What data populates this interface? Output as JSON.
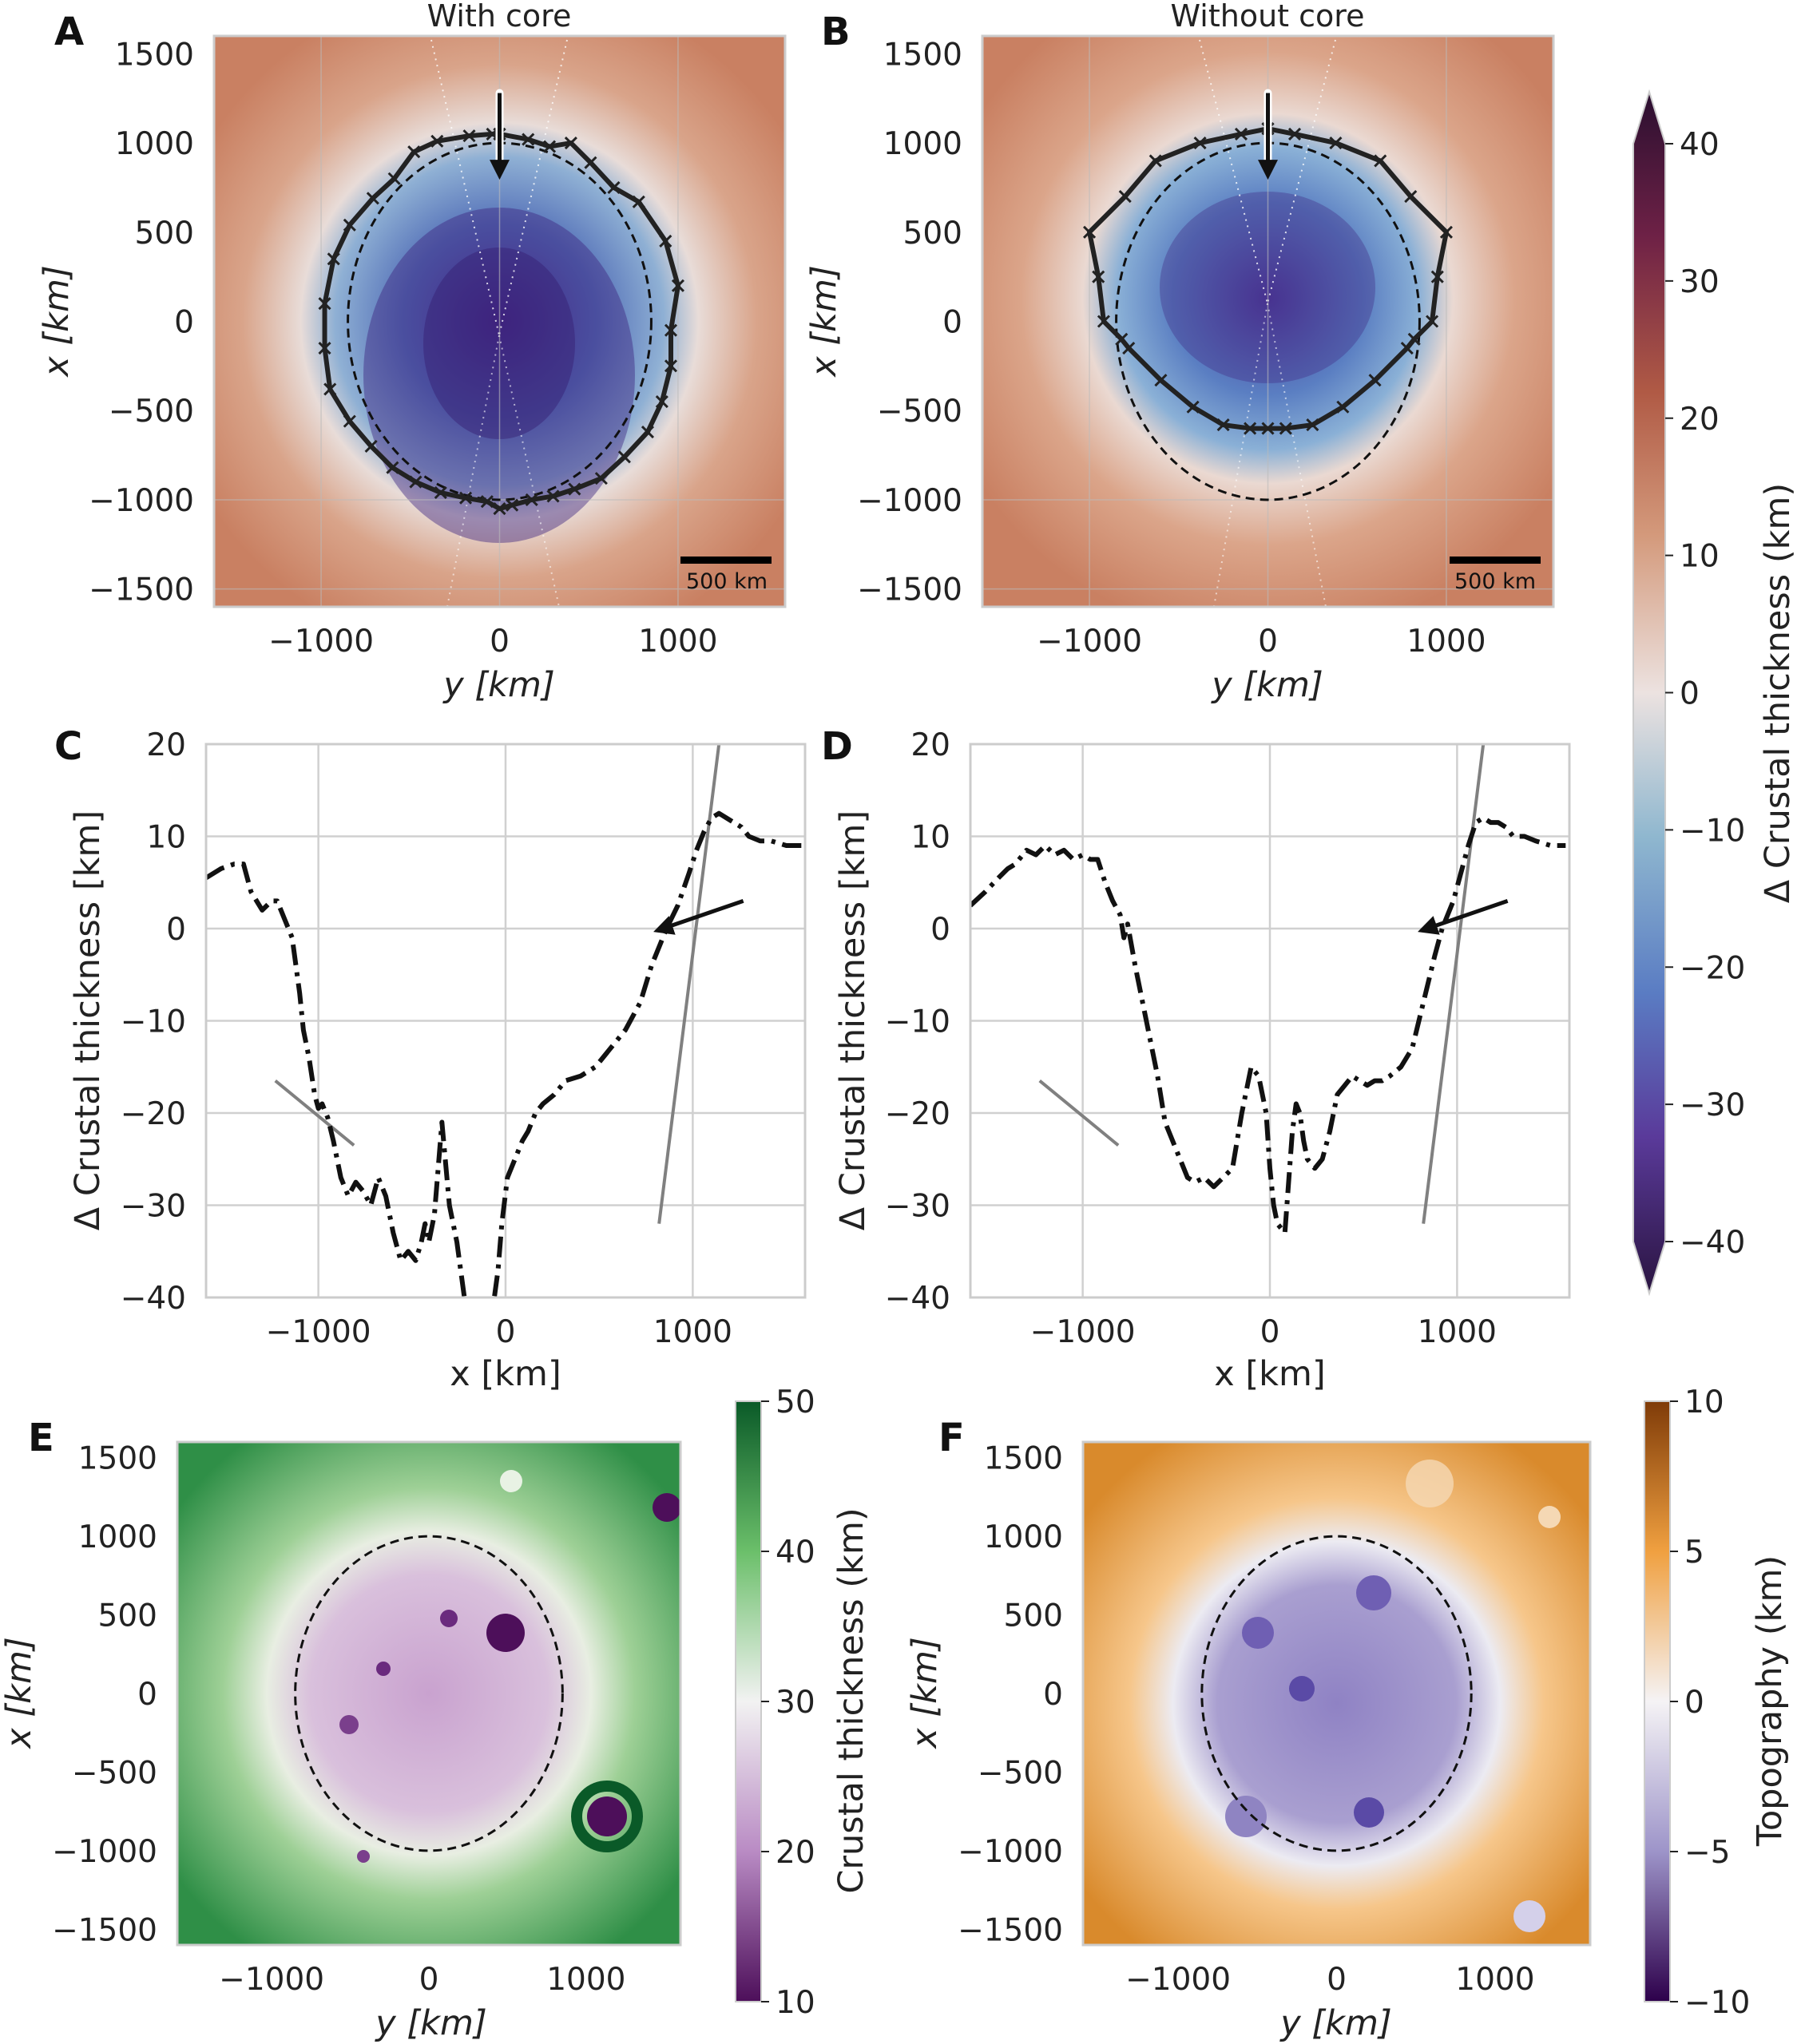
{
  "figure": {
    "panels": {
      "A": {
        "letter": "A",
        "title": "With core",
        "xlabel": "y [km]",
        "ylabel": "x [km]",
        "scale_label": "500 km"
      },
      "B": {
        "letter": "B",
        "title": "Without core",
        "xlabel": "y [km]",
        "ylabel": "x [km]",
        "scale_label": "500 km"
      },
      "C": {
        "letter": "C",
        "xlabel": "x [km]",
        "ylabel": "Δ Crustal thickness [km]"
      },
      "D": {
        "letter": "D",
        "xlabel": "x [km]",
        "ylabel": "Δ Crustal thickness [km]"
      },
      "E": {
        "letter": "E",
        "xlabel": "y [km]",
        "ylabel": "x [km]"
      },
      "F": {
        "letter": "F",
        "xlabel": "y [km]",
        "ylabel": "x [km]"
      }
    },
    "colorbars": {
      "delta": {
        "label": "Δ Crustal thickness (km)",
        "ticks": [
          "40",
          "30",
          "20",
          "10",
          "0",
          "−10",
          "−20",
          "−30",
          "−40"
        ]
      },
      "crust": {
        "label": "Crustal thickness (km)",
        "ticks": [
          "50",
          "40",
          "30",
          "20",
          "10"
        ]
      },
      "topo": {
        "label": "Topography (km)",
        "ticks": [
          "10",
          "5",
          "0",
          "−5",
          "−10"
        ]
      }
    },
    "colors": {
      "high": "#c9805e",
      "low": "#4a2a8c",
      "mid": "#5b7fc4",
      "crust_high": "#0b5a2a",
      "crust_low": "#6a2a7e",
      "topo_high": "#b35806",
      "topo_low": "#3f1f79"
    }
  },
  "chart_data": [
    {
      "type": "heatmap",
      "panel": "A",
      "title": "With core",
      "xlabel": "y [km]",
      "ylabel": "x [km]",
      "xlim": [
        -1600,
        1600
      ],
      "ylim": [
        -1600,
        1600
      ],
      "xticks": [
        "−1000",
        "0",
        "1000"
      ],
      "yticks": [
        "1500",
        "1000",
        "500",
        "0",
        "−500",
        "−1000",
        "−1500"
      ],
      "outline": {
        "y": [
          0,
          160,
          280,
          400,
          510,
          640,
          780,
          930,
          1000,
          960,
          960,
          910,
          830,
          700,
          570,
          420,
          300,
          180,
          70,
          0,
          -70,
          -190,
          -330,
          -470,
          -600,
          -720,
          -840,
          -950,
          -980,
          -980,
          -930,
          -840,
          -710,
          -590,
          -480,
          -350,
          -170,
          -40,
          0
        ],
        "x": [
          1050,
          1020,
          980,
          1000,
          890,
          750,
          670,
          450,
          200,
          -50,
          -250,
          -450,
          -620,
          -760,
          -880,
          -940,
          -980,
          -1000,
          -1030,
          -1050,
          -1010,
          -990,
          -960,
          -900,
          -820,
          -700,
          -560,
          -380,
          -150,
          100,
          350,
          540,
          690,
          800,
          950,
          1010,
          1040,
          1050,
          1050
        ]
      },
      "dashed_ellipse": {
        "center": [
          0,
          0
        ],
        "semi_y": 850,
        "semi_x": 1000
      },
      "arrow": {
        "y": 0,
        "x_from": 1280,
        "x_to": 850
      }
    },
    {
      "type": "heatmap",
      "panel": "B",
      "title": "Without core",
      "xlabel": "y [km]",
      "ylabel": "x [km]",
      "xlim": [
        -1600,
        1600
      ],
      "ylim": [
        -1600,
        1600
      ],
      "xticks": [
        "−1000",
        "0",
        "1000"
      ],
      "yticks": [
        "1500",
        "1000",
        "500",
        "0",
        "−500",
        "−1000",
        "−1500"
      ],
      "outline": {
        "y": [
          0,
          150,
          380,
          630,
          800,
          1000,
          950,
          920,
          820,
          780,
          600,
          420,
          250,
          100,
          0,
          -100,
          -250,
          -420,
          -600,
          -780,
          -820,
          -920,
          -950,
          -1000,
          -800,
          -630,
          -380,
          -150,
          0
        ],
        "x": [
          1080,
          1050,
          1000,
          900,
          700,
          500,
          250,
          0,
          -100,
          -150,
          -330,
          -480,
          -580,
          -600,
          -600,
          -600,
          -580,
          -480,
          -330,
          -150,
          -100,
          0,
          250,
          500,
          700,
          900,
          1000,
          1050,
          1080
        ]
      },
      "dashed_ellipse": {
        "center": [
          0,
          0
        ],
        "semi_y": 850,
        "semi_x": 1000
      },
      "arrow": {
        "y": 0,
        "x_from": 1280,
        "x_to": 850
      }
    },
    {
      "type": "line",
      "panel": "C",
      "xlabel": "x [km]",
      "ylabel": "Δ Crustal thickness [km]",
      "xlim": [
        -1600,
        1600
      ],
      "ylim": [
        -40,
        20
      ],
      "xticks": [
        -1000,
        0,
        1000
      ],
      "yticks": [
        20,
        10,
        0,
        -10,
        -20,
        -30,
        -40
      ],
      "x": [
        -1600,
        -1520,
        -1450,
        -1400,
        -1360,
        -1300,
        -1250,
        -1220,
        -1180,
        -1140,
        -1100,
        -1080,
        -1050,
        -1020,
        -1000,
        -980,
        -950,
        -920,
        -880,
        -840,
        -800,
        -760,
        -720,
        -680,
        -640,
        -600,
        -560,
        -520,
        -480,
        -450,
        -430,
        -410,
        -380,
        -340,
        -300,
        -260,
        -220,
        -180,
        -140,
        -110,
        -90,
        -60,
        -40,
        -20,
        10,
        50,
        90,
        120,
        160,
        200,
        260,
        320,
        400,
        480,
        560,
        640,
        720,
        780,
        860,
        920,
        980,
        1020,
        1060,
        1100,
        1140,
        1180,
        1220,
        1260,
        1300,
        1360,
        1420,
        1500,
        1580
      ],
      "y": [
        5.5,
        6.5,
        7,
        7,
        4,
        2,
        3,
        3,
        1,
        -1,
        -7,
        -11,
        -14,
        -18,
        -19.5,
        -19,
        -20.5,
        -23,
        -27,
        -29,
        -27.5,
        -28.5,
        -30,
        -27,
        -29,
        -33,
        -36,
        -35,
        -36,
        -34,
        -32,
        -34,
        -31,
        -21,
        -30,
        -34,
        -40,
        -42,
        -45,
        -47,
        -44,
        -40,
        -37,
        -32,
        -27,
        -25,
        -23,
        -22,
        -20,
        -19,
        -18,
        -16.5,
        -16,
        -15,
        -13,
        -11,
        -8,
        -4,
        0,
        2.5,
        6,
        8.5,
        10.5,
        12,
        12.5,
        12,
        11.5,
        11,
        10,
        9.5,
        9.5,
        9,
        9
      ],
      "reference_lines": [
        {
          "x": [
            -1230,
            -810
          ],
          "y": [
            -16.5,
            -23.5
          ]
        },
        {
          "x": [
            820,
            1140
          ],
          "y": [
            -32,
            20
          ]
        }
      ],
      "arrow": {
        "x_from": 1270,
        "y_from": 3,
        "x_to": 840,
        "y_to": 0
      }
    },
    {
      "type": "line",
      "panel": "D",
      "xlabel": "x [km]",
      "ylabel": "Δ Crustal thickness [km]",
      "xlim": [
        -1600,
        1600
      ],
      "ylim": [
        -40,
        20
      ],
      "xticks": [
        -1000,
        0,
        1000
      ],
      "yticks": [
        20,
        10,
        0,
        -10,
        -20,
        -30,
        -40
      ],
      "x": [
        -1600,
        -1520,
        -1450,
        -1400,
        -1360,
        -1300,
        -1250,
        -1200,
        -1150,
        -1100,
        -1050,
        -1000,
        -960,
        -920,
        -880,
        -840,
        -800,
        -780,
        -760,
        -720,
        -680,
        -640,
        -600,
        -560,
        -520,
        -480,
        -440,
        -400,
        -350,
        -300,
        -250,
        -200,
        -150,
        -100,
        -60,
        -20,
        0,
        20,
        40,
        80,
        120,
        140,
        160,
        180,
        200,
        240,
        280,
        320,
        360,
        400,
        440,
        480,
        520,
        560,
        600,
        640,
        700,
        760,
        820,
        880,
        920,
        980,
        1020,
        1060,
        1100,
        1140,
        1180,
        1220,
        1260,
        1300,
        1360,
        1420,
        1500,
        1580
      ],
      "y": [
        2.5,
        4,
        5.5,
        6.5,
        7,
        8.5,
        8,
        9,
        8,
        8.5,
        7.5,
        8,
        7.5,
        7.5,
        5,
        3,
        1.5,
        -1,
        0.5,
        -4,
        -8,
        -12,
        -16,
        -21,
        -23,
        -25,
        -27,
        -27.5,
        -27,
        -28,
        -27,
        -26,
        -20,
        -15,
        -16,
        -20,
        -26,
        -30,
        -32,
        -33,
        -22,
        -19,
        -20,
        -23,
        -25,
        -26,
        -25,
        -22,
        -18,
        -17,
        -16,
        -16.5,
        -17,
        -16.5,
        -16.5,
        -16,
        -15,
        -13,
        -8,
        -3,
        0,
        3,
        6,
        9,
        11.5,
        12,
        11.5,
        11.5,
        11,
        10,
        10,
        9.5,
        9,
        9
      ],
      "reference_lines": [
        {
          "x": [
            -1230,
            -810
          ],
          "y": [
            -16.5,
            -23.5
          ]
        },
        {
          "x": [
            820,
            1140
          ],
          "y": [
            -32,
            20
          ]
        }
      ],
      "arrow": {
        "x_from": 1270,
        "y_from": 3,
        "x_to": 840,
        "y_to": 0
      }
    },
    {
      "type": "heatmap",
      "panel": "E",
      "xlabel": "y [km]",
      "ylabel": "x [km]",
      "xlim": [
        -1600,
        1600
      ],
      "ylim": [
        -1600,
        1600
      ],
      "xticks": [
        "−1000",
        "0",
        "1000"
      ],
      "yticks": [
        "1500",
        "1000",
        "500",
        "0",
        "−500",
        "−1000",
        "−1500"
      ],
      "colorbar": {
        "label": "Crustal thickness (km)",
        "range": [
          10,
          50
        ]
      },
      "dashed_ellipse": {
        "center": [
          0,
          0
        ],
        "semi_y": 850,
        "semi_x": 1000
      }
    },
    {
      "type": "heatmap",
      "panel": "F",
      "xlabel": "y [km]",
      "ylabel": "x [km]",
      "xlim": [
        -1600,
        1600
      ],
      "ylim": [
        -1600,
        1600
      ],
      "xticks": [
        "−1000",
        "0",
        "1000"
      ],
      "yticks": [
        "1500",
        "1000",
        "500",
        "0",
        "−500",
        "−1000",
        "−1500"
      ],
      "colorbar": {
        "label": "Topography (km)",
        "range": [
          -10,
          10
        ]
      },
      "dashed_ellipse": {
        "center": [
          0,
          0
        ],
        "semi_y": 850,
        "semi_x": 1000
      }
    }
  ]
}
